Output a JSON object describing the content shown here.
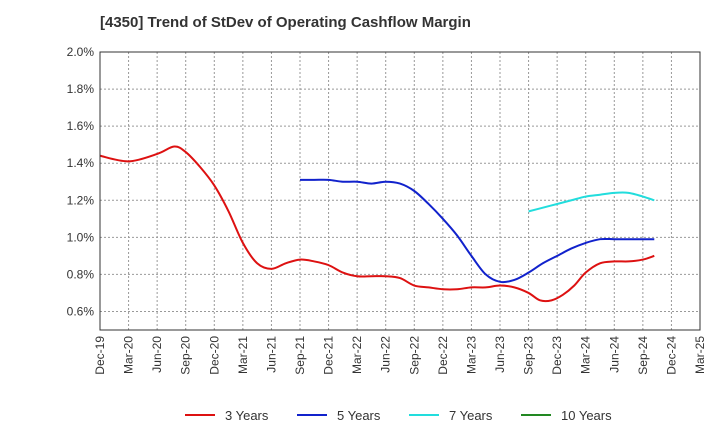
{
  "chart_data": {
    "type": "line",
    "title": "[4350]  Trend of StDev of Operating Cashflow Margin",
    "xlabel": "",
    "ylabel": "",
    "x": [
      "Dec-19",
      "Mar-20",
      "Jun-20",
      "Sep-20",
      "Dec-20",
      "Mar-21",
      "Jun-21",
      "Sep-21",
      "Dec-21",
      "Mar-22",
      "Jun-22",
      "Sep-22",
      "Dec-22",
      "Mar-23",
      "Jun-23",
      "Sep-23",
      "Dec-23",
      "Mar-24",
      "Jun-24",
      "Sep-24",
      "Dec-24",
      "Mar-25"
    ],
    "ylim": [
      0.5,
      2.0
    ],
    "yticks": [
      0.6,
      0.8,
      1.0,
      1.2,
      1.4,
      1.6,
      1.8,
      2.0
    ],
    "ytick_labels": [
      "0.6%",
      "0.8%",
      "1.0%",
      "1.2%",
      "1.4%",
      "1.6%",
      "1.8%",
      "2.0%"
    ],
    "grid": true,
    "legend_position": "bottom",
    "series": [
      {
        "name": "3 Years",
        "color": "#dd1111",
        "points": [
          [
            0,
            1.44
          ],
          [
            1,
            1.41
          ],
          [
            2,
            1.45
          ],
          [
            2.6,
            1.49
          ],
          [
            3,
            1.46
          ],
          [
            3.5,
            1.38
          ],
          [
            4,
            1.28
          ],
          [
            4.5,
            1.14
          ],
          [
            5,
            0.97
          ],
          [
            5.5,
            0.86
          ],
          [
            6,
            0.83
          ],
          [
            6.5,
            0.86
          ],
          [
            7,
            0.88
          ],
          [
            7.5,
            0.87
          ],
          [
            8,
            0.85
          ],
          [
            8.5,
            0.81
          ],
          [
            9,
            0.79
          ],
          [
            9.5,
            0.79
          ],
          [
            10,
            0.79
          ],
          [
            10.5,
            0.78
          ],
          [
            11,
            0.74
          ],
          [
            11.5,
            0.73
          ],
          [
            12,
            0.72
          ],
          [
            12.5,
            0.72
          ],
          [
            13,
            0.73
          ],
          [
            13.5,
            0.73
          ],
          [
            14,
            0.74
          ],
          [
            14.5,
            0.73
          ],
          [
            15,
            0.7
          ],
          [
            15.4,
            0.66
          ],
          [
            15.8,
            0.66
          ],
          [
            16.2,
            0.69
          ],
          [
            16.6,
            0.74
          ],
          [
            17,
            0.81
          ],
          [
            17.5,
            0.86
          ],
          [
            18,
            0.87
          ],
          [
            18.5,
            0.87
          ],
          [
            19,
            0.88
          ],
          [
            19.4,
            0.9
          ]
        ]
      },
      {
        "name": "5 Years",
        "color": "#1122cc",
        "points": [
          [
            7,
            1.31
          ],
          [
            7.5,
            1.31
          ],
          [
            8,
            1.31
          ],
          [
            8.5,
            1.3
          ],
          [
            9,
            1.3
          ],
          [
            9.5,
            1.29
          ],
          [
            10,
            1.3
          ],
          [
            10.5,
            1.29
          ],
          [
            11,
            1.25
          ],
          [
            11.5,
            1.18
          ],
          [
            12,
            1.1
          ],
          [
            12.5,
            1.01
          ],
          [
            13,
            0.9
          ],
          [
            13.5,
            0.8
          ],
          [
            14,
            0.76
          ],
          [
            14.5,
            0.77
          ],
          [
            15,
            0.81
          ],
          [
            15.5,
            0.86
          ],
          [
            16,
            0.9
          ],
          [
            16.5,
            0.94
          ],
          [
            17,
            0.97
          ],
          [
            17.5,
            0.99
          ],
          [
            18,
            0.99
          ],
          [
            18.5,
            0.99
          ],
          [
            19,
            0.99
          ],
          [
            19.4,
            0.99
          ]
        ]
      },
      {
        "name": "7 Years",
        "color": "#22dddd",
        "points": [
          [
            15,
            1.14
          ],
          [
            15.5,
            1.16
          ],
          [
            16,
            1.18
          ],
          [
            16.5,
            1.2
          ],
          [
            17,
            1.22
          ],
          [
            17.5,
            1.23
          ],
          [
            18,
            1.24
          ],
          [
            18.5,
            1.24
          ],
          [
            19,
            1.22
          ],
          [
            19.4,
            1.2
          ]
        ]
      },
      {
        "name": "10 Years",
        "color": "#228822",
        "points": []
      }
    ]
  }
}
